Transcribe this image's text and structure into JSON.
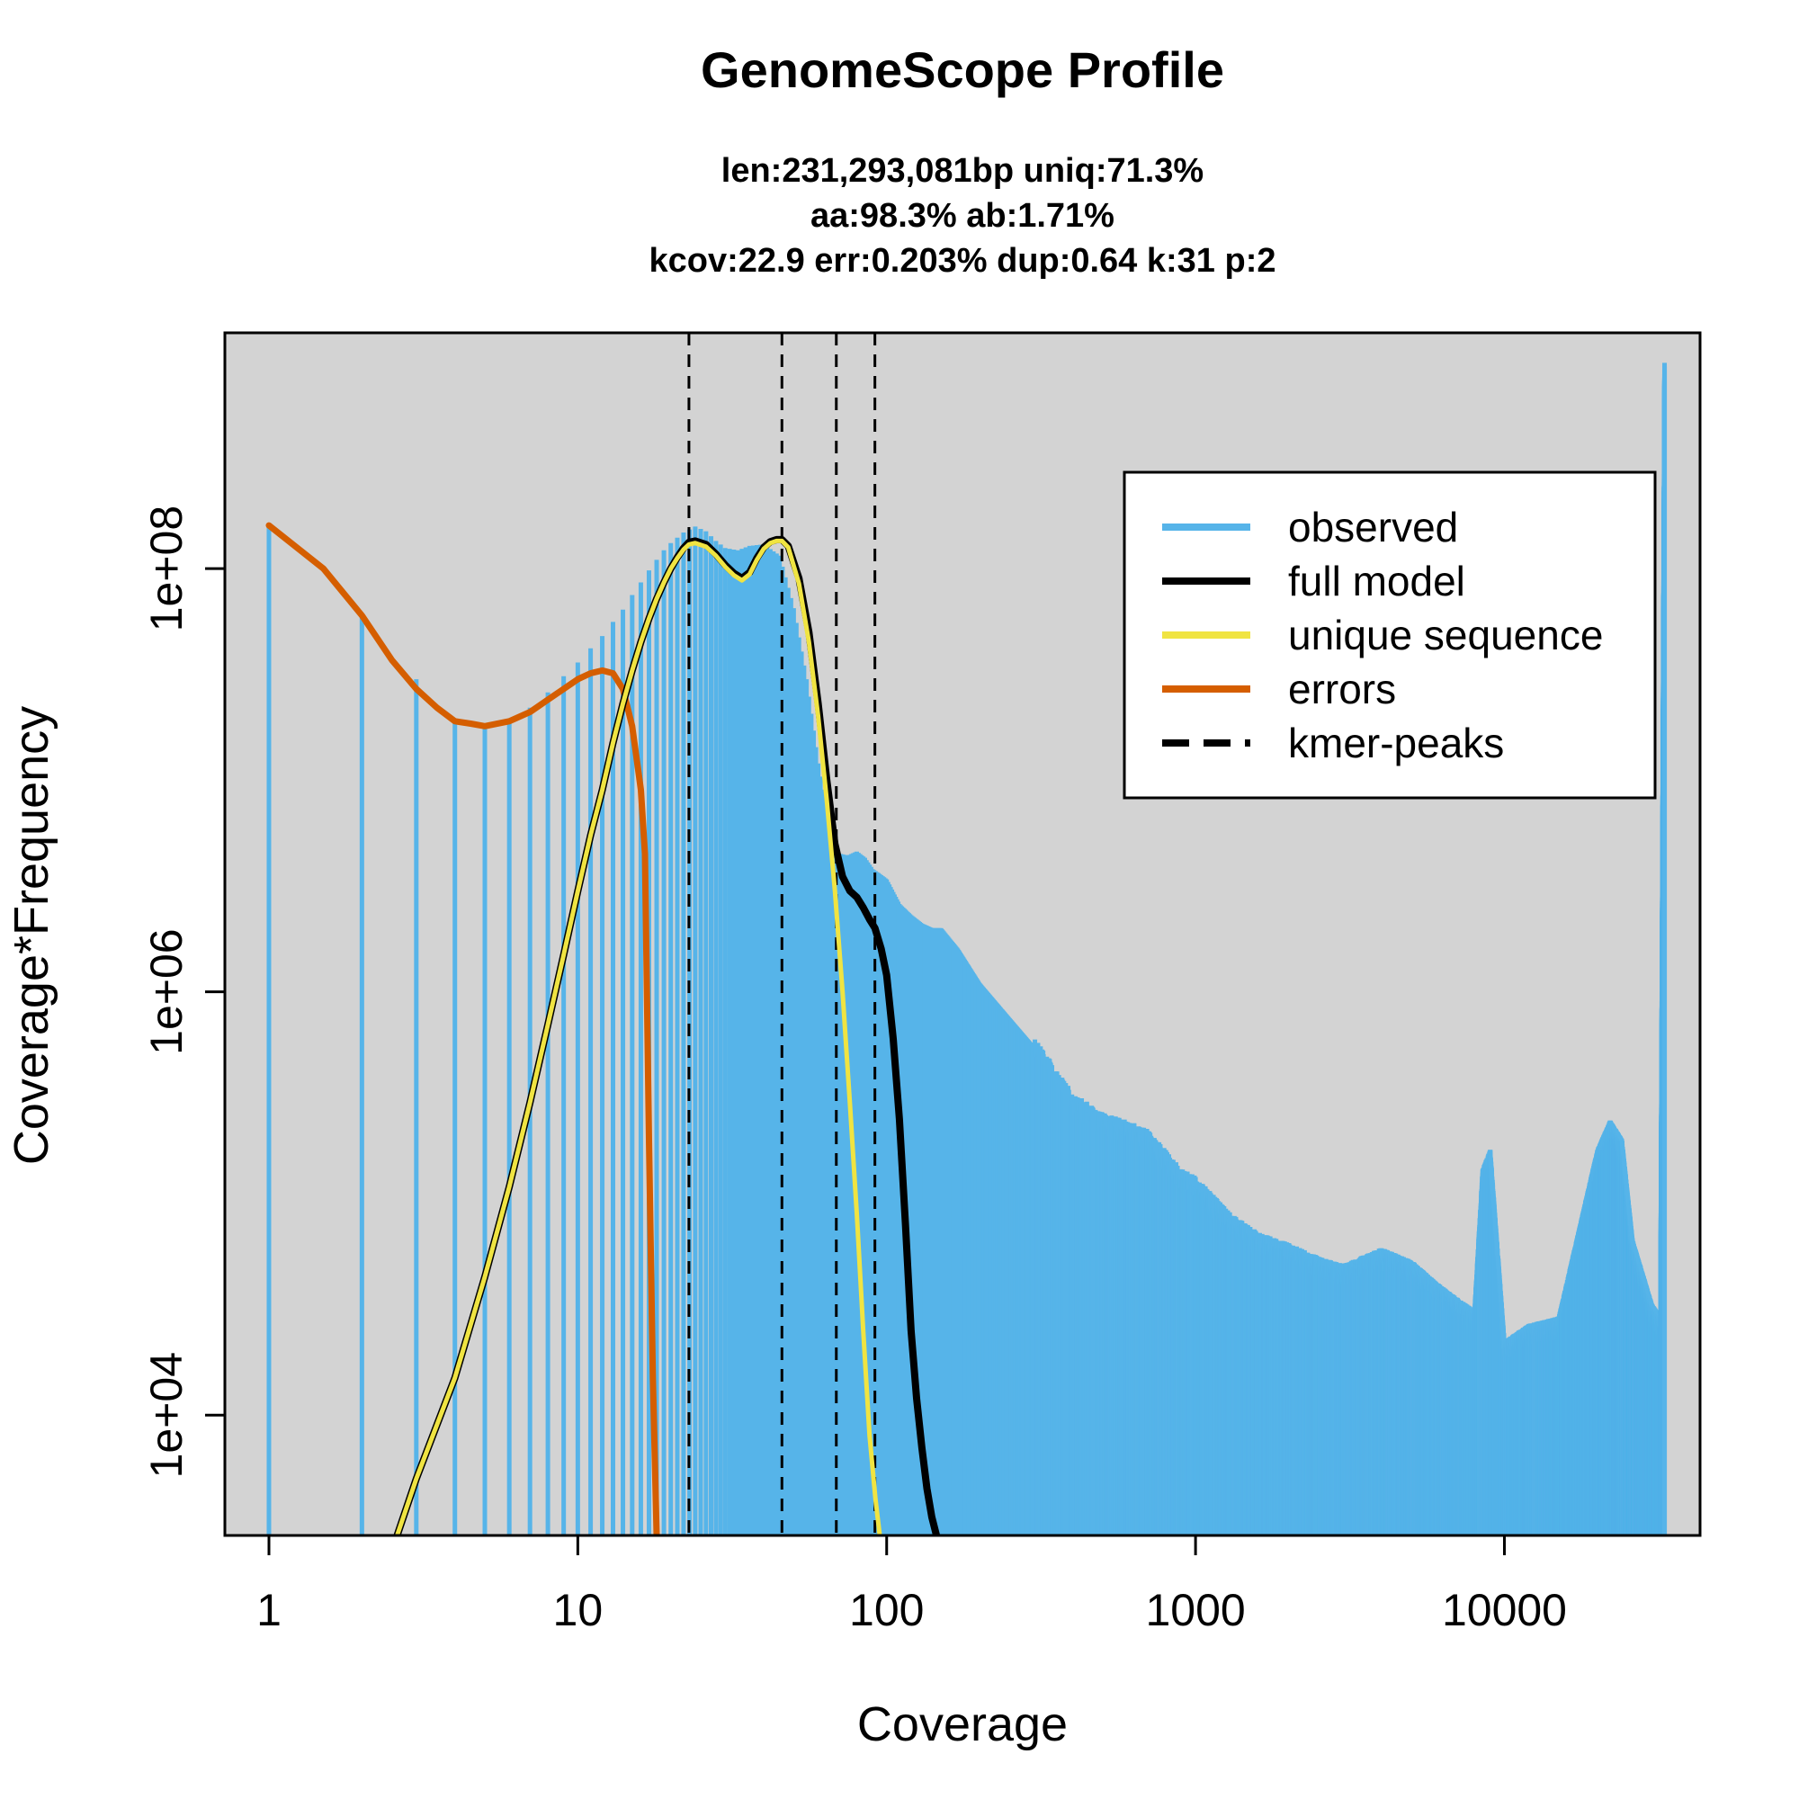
{
  "chart_data": {
    "type": "bar",
    "title": "GenomeScope Profile",
    "subtitle_lines": [
      "len:231,293,081bp uniq:71.3%",
      "aa:98.3% ab:1.71%",
      "kcov:22.9 err:0.203%  dup:0.64  k:31 p:2"
    ],
    "xlabel": "Coverage",
    "ylabel": "Coverage*Frequency",
    "x_scale": "log",
    "y_scale": "log",
    "xlim": [
      0.72,
      43000
    ],
    "ylim": [
      2700,
      1300000000.0
    ],
    "x_ticks": [
      {
        "value": 1,
        "label": "1"
      },
      {
        "value": 10,
        "label": "10"
      },
      {
        "value": 100,
        "label": "100"
      },
      {
        "value": 1000,
        "label": "1000"
      },
      {
        "value": 10000,
        "label": "10000"
      }
    ],
    "y_ticks": [
      {
        "value": 10000,
        "label": "1e+04"
      },
      {
        "value": 1000000,
        "label": "1e+06"
      },
      {
        "value": 100000000,
        "label": "1e+08"
      }
    ],
    "background": "#d3d3d3",
    "colors": {
      "observed": "#56b4e9",
      "full_model": "#000000",
      "unique_sequence": "#f0e442",
      "errors": "#d55e00",
      "kmer_peaks": "#000000"
    },
    "legend": {
      "position": "top-right",
      "entries": [
        {
          "key": "observed",
          "label": "observed",
          "style": "solid"
        },
        {
          "key": "full_model",
          "label": "full model",
          "style": "solid"
        },
        {
          "key": "unique_sequence",
          "label": "unique sequence",
          "style": "solid"
        },
        {
          "key": "errors",
          "label": "errors",
          "style": "solid"
        },
        {
          "key": "kmer_peaks",
          "label": "kmer-peaks",
          "style": "dashed"
        }
      ]
    },
    "kmer_peaks": [
      22.9,
      45.8,
      68.7,
      91.6
    ],
    "observed": {
      "x": [
        1,
        2,
        3,
        4,
        5,
        6,
        7,
        8,
        9,
        10,
        11,
        12,
        13,
        14,
        15,
        16,
        17,
        18,
        19,
        20,
        22,
        24,
        26,
        28,
        30,
        33,
        36,
        40,
        45,
        50,
        55,
        60,
        65,
        70,
        75,
        80,
        85,
        90,
        95,
        100,
        110,
        120,
        130,
        140,
        150,
        170,
        200,
        250,
        300,
        400,
        500,
        600,
        700,
        800,
        900,
        1000,
        1300,
        1600,
        2000,
        2500,
        3000,
        4000,
        5000,
        6000,
        7000,
        8000,
        8500,
        9000,
        10000,
        12000,
        15000,
        20000,
        22000,
        24000,
        26000,
        30000,
        32000,
        33000
      ],
      "y": [
        160000000.0,
        60000000.0,
        30000000.0,
        19000000.0,
        18000000.0,
        19000000.0,
        22000000.0,
        26000000.0,
        31000000.0,
        36000000.0,
        42000000.0,
        48000000.0,
        56000000.0,
        64000000.0,
        75000000.0,
        86000000.0,
        98000000.0,
        110000000.0,
        122000000.0,
        132000000.0,
        148000000.0,
        158000000.0,
        150000000.0,
        135000000.0,
        125000000.0,
        122000000.0,
        128000000.0,
        130000000.0,
        115000000.0,
        65000000.0,
        30000000.0,
        12000000.0,
        6000000.0,
        4500000.0,
        4400000.0,
        4600000.0,
        4300000.0,
        3800000.0,
        3600000.0,
        3400000.0,
        2600000.0,
        2300000.0,
        2100000.0,
        2000000.0,
        2000000.0,
        1600000.0,
        1100000.0,
        750000.0,
        550000.0,
        300000.0,
        240000.0,
        220000.0,
        200000.0,
        160000.0,
        130000.0,
        120000.0,
        80000.0,
        65000.0,
        58000.0,
        50000.0,
        46000.0,
        55000.0,
        48000.0,
        38000.0,
        32000.0,
        28000.0,
        130000.0,
        160000.0,
        20000.0,
        24000.0,
        26000.0,
        160000.0,
        220000.0,
        180000.0,
        60000.0,
        30000.0,
        26000.0,
        900000000.0
      ]
    },
    "full_model": {
      "x": [
        2.6,
        3,
        4,
        5,
        6,
        7,
        8,
        9,
        10,
        11,
        12,
        13,
        14,
        15,
        16,
        17,
        18,
        19,
        20,
        21,
        22,
        22.9,
        24,
        26,
        28,
        30,
        32,
        34,
        36,
        38,
        40,
        42,
        44,
        45.8,
        48,
        52,
        56,
        60,
        64,
        68,
        72,
        76,
        80,
        84,
        88,
        91.6,
        96,
        100,
        105,
        110,
        115,
        120,
        125,
        130,
        135,
        140,
        145
      ],
      "y": [
        2700,
        5000,
        15000.0,
        45000.0,
        120000.0,
        300000.0,
        700000.0,
        1500000.0,
        3000000.0,
        5500000.0,
        9000000.0,
        15000000.0,
        23000000.0,
        33000000.0,
        45000000.0,
        58000000.0,
        72000000.0,
        86000000.0,
        100000000.0,
        113000000.0,
        125000000.0,
        133000000.0,
        135000000.0,
        130000000.0,
        117000000.0,
        104000000.0,
        95000000.0,
        90000000.0,
        96000000.0,
        112000000.0,
        126000000.0,
        134000000.0,
        137000000.0,
        137000000.0,
        128000000.0,
        90000000.0,
        50000000.0,
        23000000.0,
        10000000.0,
        5000000.0,
        3500000.0,
        3000000.0,
        2800000.0,
        2500000.0,
        2200000.0,
        2000000.0,
        1600000.0,
        1200000.0,
        600000.0,
        250000.0,
        80000.0,
        25000.0,
        12000.0,
        7000.0,
        4500.0,
        3300.0,
        2700
      ]
    },
    "unique_sequence": {
      "x": [
        2.6,
        3,
        4,
        5,
        6,
        7,
        8,
        9,
        10,
        11,
        12,
        13,
        14,
        15,
        16,
        17,
        18,
        19,
        20,
        21,
        22,
        22.9,
        24,
        26,
        28,
        30,
        32,
        34,
        36,
        38,
        40,
        42,
        44,
        45.8,
        48,
        52,
        56,
        60,
        64,
        68,
        72,
        76,
        80,
        84,
        88,
        92,
        95
      ],
      "y": [
        2700,
        5000,
        15000.0,
        45000.0,
        120000.0,
        300000.0,
        700000.0,
        1500000.0,
        3000000.0,
        5500000.0,
        9000000.0,
        15000000.0,
        23000000.0,
        33000000.0,
        45000000.0,
        58000000.0,
        72000000.0,
        86000000.0,
        100000000.0,
        112000000.0,
        123000000.0,
        130000000.0,
        132000000.0,
        127000000.0,
        115000000.0,
        102000000.0,
        93000000.0,
        88000000.0,
        94000000.0,
        110000000.0,
        124000000.0,
        132000000.0,
        135000000.0,
        135000000.0,
        126000000.0,
        85000000.0,
        45000000.0,
        20000000.0,
        8000000.0,
        3000000.0,
        1000000.0,
        300000.0,
        90000.0,
        25000.0,
        8000.0,
        4000.0,
        2700
      ]
    },
    "errors": {
      "x": [
        1,
        1.5,
        2,
        2.5,
        3,
        3.5,
        4,
        4.5,
        5,
        6,
        7,
        8,
        9,
        10,
        11,
        12,
        13,
        14,
        15,
        16,
        16.5,
        17,
        17.5,
        18
      ],
      "y": [
        160000000.0,
        100000000.0,
        60000000.0,
        37000000.0,
        27000000.0,
        22000000.0,
        19000000.0,
        18500000.0,
        18000000.0,
        19000000.0,
        21000000.0,
        24000000.0,
        27000000.0,
        30000000.0,
        32000000.0,
        33000000.0,
        32000000.0,
        27000000.0,
        18000000.0,
        9000000.0,
        4500000.0,
        200000.0,
        15000.0,
        2700
      ]
    }
  }
}
